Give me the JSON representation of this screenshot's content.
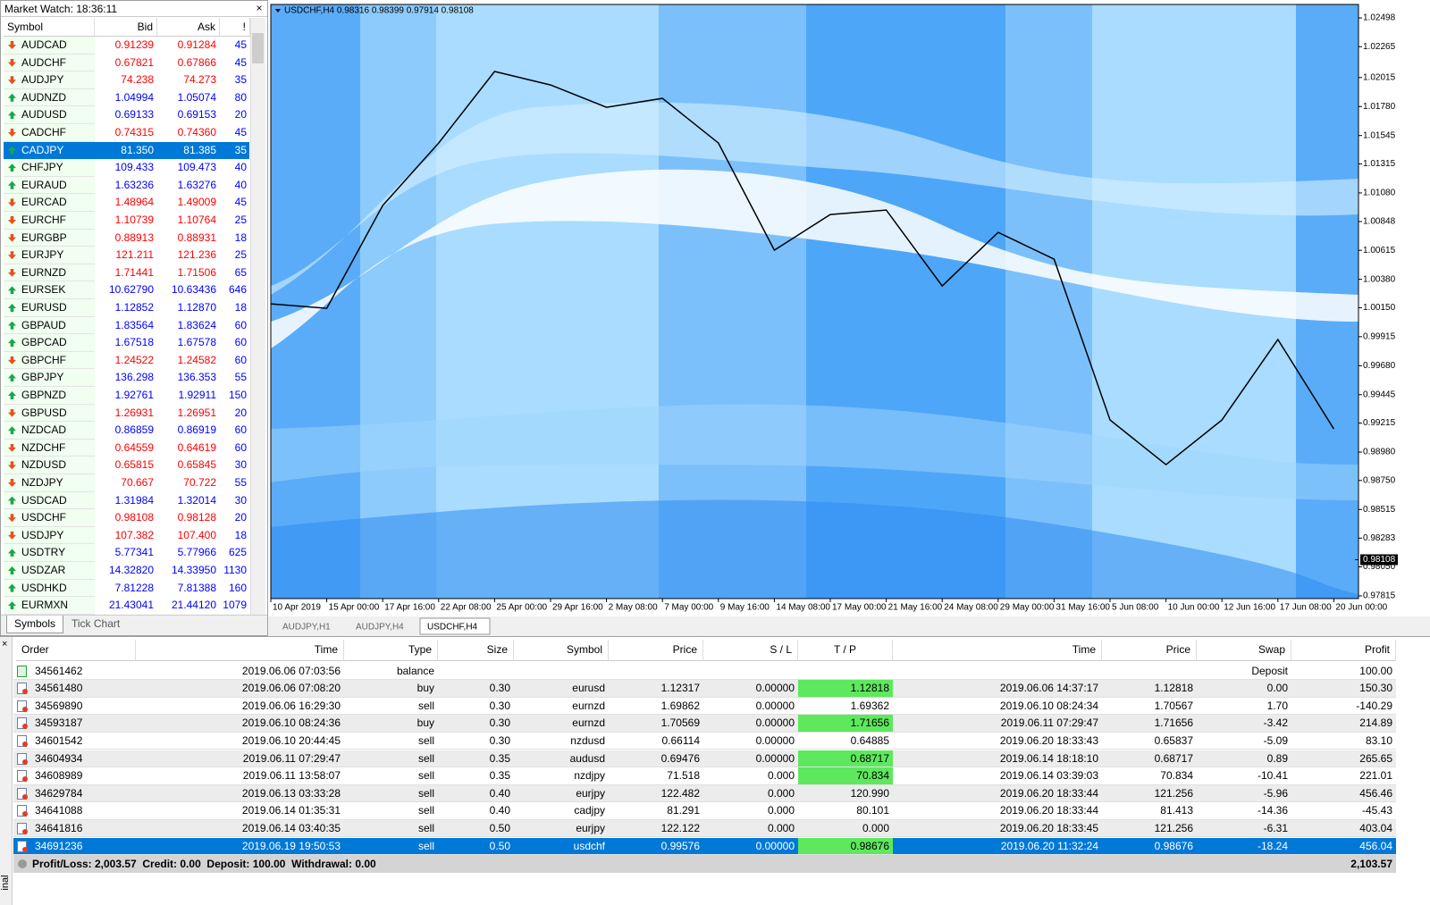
{
  "market_watch": {
    "title": "Market Watch: 18:36:11",
    "columns": [
      "Symbol",
      "Bid",
      "Ask",
      "!"
    ],
    "selected": 6,
    "tabs": [
      "Symbols",
      "Tick Chart"
    ],
    "active_tab": 0,
    "rows": [
      {
        "symbol": "AUDCAD",
        "bid": "0.91239",
        "ask": "0.91284",
        "spread": "45",
        "trend": "down"
      },
      {
        "symbol": "AUDCHF",
        "bid": "0.67821",
        "ask": "0.67866",
        "spread": "45",
        "trend": "down"
      },
      {
        "symbol": "AUDJPY",
        "bid": "74.238",
        "ask": "74.273",
        "spread": "35",
        "trend": "down"
      },
      {
        "symbol": "AUDNZD",
        "bid": "1.04994",
        "ask": "1.05074",
        "spread": "80",
        "trend": "up"
      },
      {
        "symbol": "AUDUSD",
        "bid": "0.69133",
        "ask": "0.69153",
        "spread": "20",
        "trend": "up"
      },
      {
        "symbol": "CADCHF",
        "bid": "0.74315",
        "ask": "0.74360",
        "spread": "45",
        "trend": "down"
      },
      {
        "symbol": "CADJPY",
        "bid": "81.350",
        "ask": "81.385",
        "spread": "35",
        "trend": "up"
      },
      {
        "symbol": "CHFJPY",
        "bid": "109.433",
        "ask": "109.473",
        "spread": "40",
        "trend": "up"
      },
      {
        "symbol": "EURAUD",
        "bid": "1.63236",
        "ask": "1.63276",
        "spread": "40",
        "trend": "up"
      },
      {
        "symbol": "EURCAD",
        "bid": "1.48964",
        "ask": "1.49009",
        "spread": "45",
        "trend": "down"
      },
      {
        "symbol": "EURCHF",
        "bid": "1.10739",
        "ask": "1.10764",
        "spread": "25",
        "trend": "down"
      },
      {
        "symbol": "EURGBP",
        "bid": "0.88913",
        "ask": "0.88931",
        "spread": "18",
        "trend": "down"
      },
      {
        "symbol": "EURJPY",
        "bid": "121.211",
        "ask": "121.236",
        "spread": "25",
        "trend": "down"
      },
      {
        "symbol": "EURNZD",
        "bid": "1.71441",
        "ask": "1.71506",
        "spread": "65",
        "trend": "down"
      },
      {
        "symbol": "EURSEK",
        "bid": "10.62790",
        "ask": "10.63436",
        "spread": "646",
        "trend": "up"
      },
      {
        "symbol": "EURUSD",
        "bid": "1.12852",
        "ask": "1.12870",
        "spread": "18",
        "trend": "up"
      },
      {
        "symbol": "GBPAUD",
        "bid": "1.83564",
        "ask": "1.83624",
        "spread": "60",
        "trend": "up"
      },
      {
        "symbol": "GBPCAD",
        "bid": "1.67518",
        "ask": "1.67578",
        "spread": "60",
        "trend": "up"
      },
      {
        "symbol": "GBPCHF",
        "bid": "1.24522",
        "ask": "1.24582",
        "spread": "60",
        "trend": "down"
      },
      {
        "symbol": "GBPJPY",
        "bid": "136.298",
        "ask": "136.353",
        "spread": "55",
        "trend": "up"
      },
      {
        "symbol": "GBPNZD",
        "bid": "1.92761",
        "ask": "1.92911",
        "spread": "150",
        "trend": "up"
      },
      {
        "symbol": "GBPUSD",
        "bid": "1.26931",
        "ask": "1.26951",
        "spread": "20",
        "trend": "down"
      },
      {
        "symbol": "NZDCAD",
        "bid": "0.86859",
        "ask": "0.86919",
        "spread": "60",
        "trend": "up"
      },
      {
        "symbol": "NZDCHF",
        "bid": "0.64559",
        "ask": "0.64619",
        "spread": "60",
        "trend": "down"
      },
      {
        "symbol": "NZDUSD",
        "bid": "0.65815",
        "ask": "0.65845",
        "spread": "30",
        "trend": "down"
      },
      {
        "symbol": "NZDJPY",
        "bid": "70.667",
        "ask": "70.722",
        "spread": "55",
        "trend": "down"
      },
      {
        "symbol": "USDCAD",
        "bid": "1.31984",
        "ask": "1.32014",
        "spread": "30",
        "trend": "up"
      },
      {
        "symbol": "USDCHF",
        "bid": "0.98108",
        "ask": "0.98128",
        "spread": "20",
        "trend": "down"
      },
      {
        "symbol": "USDJPY",
        "bid": "107.382",
        "ask": "107.400",
        "spread": "18",
        "trend": "down"
      },
      {
        "symbol": "USDTRY",
        "bid": "5.77341",
        "ask": "5.77966",
        "spread": "625",
        "trend": "up"
      },
      {
        "symbol": "USDZAR",
        "bid": "14.32820",
        "ask": "14.33950",
        "spread": "1130",
        "trend": "up"
      },
      {
        "symbol": "USDHKD",
        "bid": "7.81228",
        "ask": "7.81388",
        "spread": "160",
        "trend": "up"
      },
      {
        "symbol": "EURMXN",
        "bid": "21.43041",
        "ask": "21.44120",
        "spread": "1079",
        "trend": "up"
      }
    ]
  },
  "chart_data": {
    "type": "line",
    "title": "USDCHF,H4  0.98316 0.98399 0.97914 0.98108",
    "color": "#000000",
    "categories": [
      "10 Apr 2019",
      "15 Apr 00:00",
      "17 Apr 16:00",
      "22 Apr 08:00",
      "25 Apr 00:00",
      "29 Apr 16:00",
      "2 May 08:00",
      "7 May 00:00",
      "9 May 16:00",
      "14 May 08:00",
      "17 May 00:00",
      "21 May 16:00",
      "24 May 08:00",
      "29 May 00:00",
      "31 May 16:00",
      "5 Jun 08:00",
      "10 Jun 00:00",
      "12 Jun 16:00",
      "17 Jun 08:00",
      "20 Jun 00:00"
    ],
    "values": [
      1.00181,
      1.00145,
      1.00978,
      1.01484,
      1.02064,
      1.01955,
      1.01774,
      1.01846,
      1.01484,
      1.00616,
      1.00905,
      1.00941,
      1.00326,
      1.0076,
      1.00543,
      0.9924,
      0.98878,
      0.9924,
      0.99892,
      0.99168
    ],
    "ylim": [
      0.97793,
      1.02607
    ],
    "yticks": [
      1.02498,
      1.02265,
      1.02015,
      {
        "value": 1.0178,
        "label": "1.01780"
      },
      1.01545,
      1.01315,
      {
        "value": 1.0108,
        "label": "1.01080"
      },
      1.00848,
      1.00615,
      {
        "value": 1.0038,
        "label": "1.00380"
      },
      {
        "value": 1.0015,
        "label": "1.00150"
      },
      0.99915,
      {
        "value": 0.9968,
        "label": "0.99680"
      },
      0.99445,
      0.99215,
      {
        "value": 0.9898,
        "label": "0.98980"
      },
      {
        "value": 0.9875,
        "label": "0.98750"
      },
      0.98515,
      0.98283,
      {
        "value": 0.9805,
        "label": "0.98050"
      },
      0.97815
    ],
    "current_price": {
      "value": 0.98108,
      "label": "0.98108"
    },
    "tabs": [
      "AUDJPY,H1",
      "AUDJPY,H4",
      "USDCHF,H4"
    ],
    "active_tab": 2
  },
  "terminal": {
    "side_label": "inal",
    "columns": [
      "Order",
      "Time",
      "Type",
      "Size",
      "Symbol",
      "Price",
      "S / L",
      "T / P",
      "Time",
      "Price",
      "Swap",
      "Profit"
    ],
    "selected": 10,
    "rows": [
      {
        "cells": [
          "34561462",
          "2019.06.06 07:03:56",
          "balance",
          null,
          null,
          null,
          null,
          null,
          null,
          null,
          "Deposit",
          "100.00"
        ],
        "tp_hit": false
      },
      {
        "cells": [
          "34561480",
          "2019.06.06 07:08:20",
          "buy",
          "0.30",
          "eurusd",
          "1.12317",
          "0.00000",
          "1.12818",
          "2019.06.06 14:37:17",
          "1.12818",
          "0.00",
          "150.30"
        ],
        "tp_hit": true
      },
      {
        "cells": [
          "34569890",
          "2019.06.06 16:29:30",
          "sell",
          "0.30",
          "eurnzd",
          "1.69862",
          "0.00000",
          "1.69362",
          "2019.06.10 08:24:34",
          "1.70567",
          "1.70",
          "-140.29"
        ],
        "tp_hit": false
      },
      {
        "cells": [
          "34593187",
          "2019.06.10 08:24:36",
          "buy",
          "0.30",
          "eurnzd",
          "1.70569",
          "0.00000",
          "1.71656",
          "2019.06.11 07:29:47",
          "1.71656",
          "-3.42",
          "214.89"
        ],
        "tp_hit": true
      },
      {
        "cells": [
          "34601542",
          "2019.06.10 20:44:45",
          "sell",
          "0.30",
          "nzdusd",
          "0.66114",
          "0.00000",
          "0.64885",
          "2019.06.20 18:33:43",
          "0.65837",
          "-5.09",
          "83.10"
        ],
        "tp_hit": false
      },
      {
        "cells": [
          "34604934",
          "2019.06.11 07:29:47",
          "sell",
          "0.35",
          "audusd",
          "0.69476",
          "0.00000",
          "0.68717",
          "2019.06.14 18:18:10",
          "0.68717",
          "0.89",
          "265.65"
        ],
        "tp_hit": true
      },
      {
        "cells": [
          "34608989",
          "2019.06.11 13:58:07",
          "sell",
          "0.35",
          "nzdjpy",
          "71.518",
          "0.000",
          "70.834",
          "2019.06.14 03:39:03",
          "70.834",
          "-10.41",
          "221.01"
        ],
        "tp_hit": true
      },
      {
        "cells": [
          "34629784",
          "2019.06.13 03:33:28",
          "sell",
          "0.40",
          "eurjpy",
          "122.482",
          "0.000",
          "120.990",
          "2019.06.20 18:33:44",
          "121.256",
          "-5.96",
          "456.46"
        ],
        "tp_hit": false
      },
      {
        "cells": [
          "34641088",
          "2019.06.14 01:35:31",
          "sell",
          "0.40",
          "cadjpy",
          "81.291",
          "0.000",
          "80.101",
          "2019.06.20 18:33:44",
          "81.413",
          "-14.36",
          "-45.43"
        ],
        "tp_hit": false
      },
      {
        "cells": [
          "34641816",
          "2019.06.14 03:40:35",
          "sell",
          "0.50",
          "eurjpy",
          "122.122",
          "0.000",
          "0.000",
          "2019.06.20 18:33:45",
          "121.256",
          "-6.31",
          "403.04"
        ],
        "tp_hit": false
      },
      {
        "cells": [
          "34691236",
          "2019.06.19 19:50:53",
          "sell",
          "0.50",
          "usdchf",
          "0.99576",
          "0.00000",
          "0.98676",
          "2019.06.20 11:32:24",
          "0.98676",
          "-18.24",
          "456.04"
        ],
        "tp_hit": true
      }
    ],
    "summary": "Profit/Loss: 2,003.57  Credit: 0.00  Deposit: 100.00  Withdrawal: 0.00",
    "total": "2,103.57"
  }
}
